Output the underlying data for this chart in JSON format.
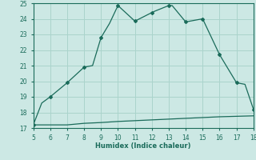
{
  "xlabel": "Humidex (Indice chaleur)",
  "background_color": "#cce8e4",
  "grid_color": "#aad4cc",
  "line_color": "#1a6b5a",
  "xlim": [
    5,
    18
  ],
  "ylim": [
    17,
    25
  ],
  "xticks": [
    5,
    6,
    7,
    8,
    9,
    10,
    11,
    12,
    13,
    14,
    15,
    16,
    17,
    18
  ],
  "yticks": [
    17,
    18,
    19,
    20,
    21,
    22,
    23,
    24,
    25
  ],
  "x_main": [
    5,
    5.5,
    6,
    7,
    8,
    8.5,
    9,
    9.5,
    10,
    11,
    12,
    12.2,
    13,
    13.2,
    14,
    15,
    16,
    17,
    17.5,
    18
  ],
  "y_main": [
    17.2,
    18.6,
    19.0,
    19.9,
    20.9,
    21.0,
    22.8,
    23.7,
    24.85,
    23.85,
    24.4,
    24.5,
    24.85,
    24.85,
    23.8,
    24.0,
    21.7,
    19.9,
    19.8,
    18.2
  ],
  "x_flat": [
    5,
    6,
    7,
    8,
    9,
    10,
    11,
    12,
    13,
    14,
    15,
    16,
    17,
    18
  ],
  "y_flat": [
    17.2,
    17.2,
    17.2,
    17.3,
    17.35,
    17.42,
    17.47,
    17.52,
    17.57,
    17.62,
    17.67,
    17.72,
    17.75,
    17.78
  ],
  "x_markers": [
    5,
    6,
    7,
    8,
    9,
    10,
    11,
    12,
    13,
    14,
    15,
    16,
    17,
    18
  ],
  "y_markers": [
    17.2,
    19.0,
    19.9,
    20.9,
    22.8,
    24.85,
    23.85,
    24.4,
    24.85,
    23.8,
    24.0,
    21.7,
    19.9,
    18.2
  ]
}
